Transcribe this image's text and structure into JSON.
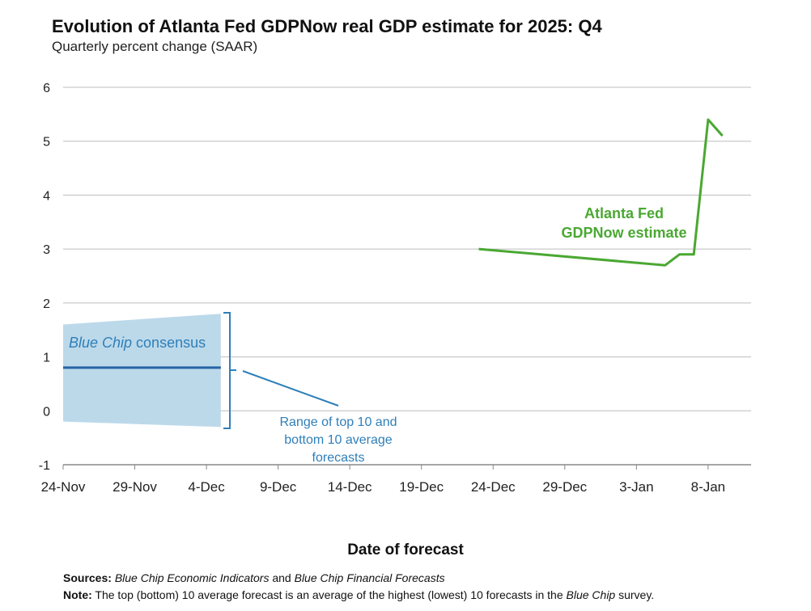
{
  "chart_data": {
    "type": "line",
    "title": "Evolution of Atlanta Fed GDPNow real GDP estimate for 2025: Q4",
    "subtitle": "Quarterly percent change (SAAR)",
    "xlabel": "Date of forecast",
    "ylabel": "",
    "ylim": [
      -1,
      6
    ],
    "yticks": [
      "6",
      "5",
      "4",
      "3",
      "2",
      "1",
      "0",
      "-1"
    ],
    "xticks": [
      "24-Nov",
      "29-Nov",
      "4-Dec",
      "9-Dec",
      "14-Dec",
      "19-Dec",
      "24-Dec",
      "29-Dec",
      "3-Jan",
      "8-Jan"
    ],
    "grid": "horizontal",
    "series": [
      {
        "name": "Atlanta Fed GDPNow estimate",
        "color": "#4aa832",
        "points": [
          {
            "x": "2025-12-23",
            "y": 3.0
          },
          {
            "x": "2026-01-05",
            "y": 2.7
          },
          {
            "x": "2026-01-06",
            "y": 2.9
          },
          {
            "x": "2026-01-07",
            "y": 2.9
          },
          {
            "x": "2026-01-08",
            "y": 5.4
          },
          {
            "x": "2026-01-09",
            "y": 5.1
          }
        ]
      },
      {
        "name": "Blue Chip consensus",
        "color": "#2563a6",
        "points": [
          {
            "x": "2025-11-24",
            "y": 0.8
          },
          {
            "x": "2025-12-05",
            "y": 0.8
          }
        ]
      }
    ],
    "range_band": {
      "color": "#bcd9ea",
      "start": {
        "x": "2025-11-24",
        "low": -0.2,
        "high": 1.6
      },
      "end": {
        "x": "2025-12-05",
        "low": -0.3,
        "high": 1.8
      }
    },
    "annotations": {
      "blue_chip": "Blue Chip consensus",
      "blue_chip_italic": "Blue Chip",
      "blue_chip_rest": " consensus",
      "range_lines": [
        "Range of top 10 and",
        "bottom 10 average",
        "forecasts"
      ],
      "gdpnow_lines": [
        "Atlanta Fed",
        "GDPNow estimate"
      ]
    }
  },
  "footer": {
    "sources_label": "Sources:",
    "sources_pub1": "Blue Chip Economic Indicators",
    "sources_and": " and ",
    "sources_pub2": "Blue Chip Financial Forecasts",
    "note_label": "Note:",
    "note_text_1": " The top (bottom) 10 average forecast is an average of the highest (lowest) 10 forecasts in the ",
    "note_italic": "Blue Chip",
    "note_text_2": " survey."
  }
}
